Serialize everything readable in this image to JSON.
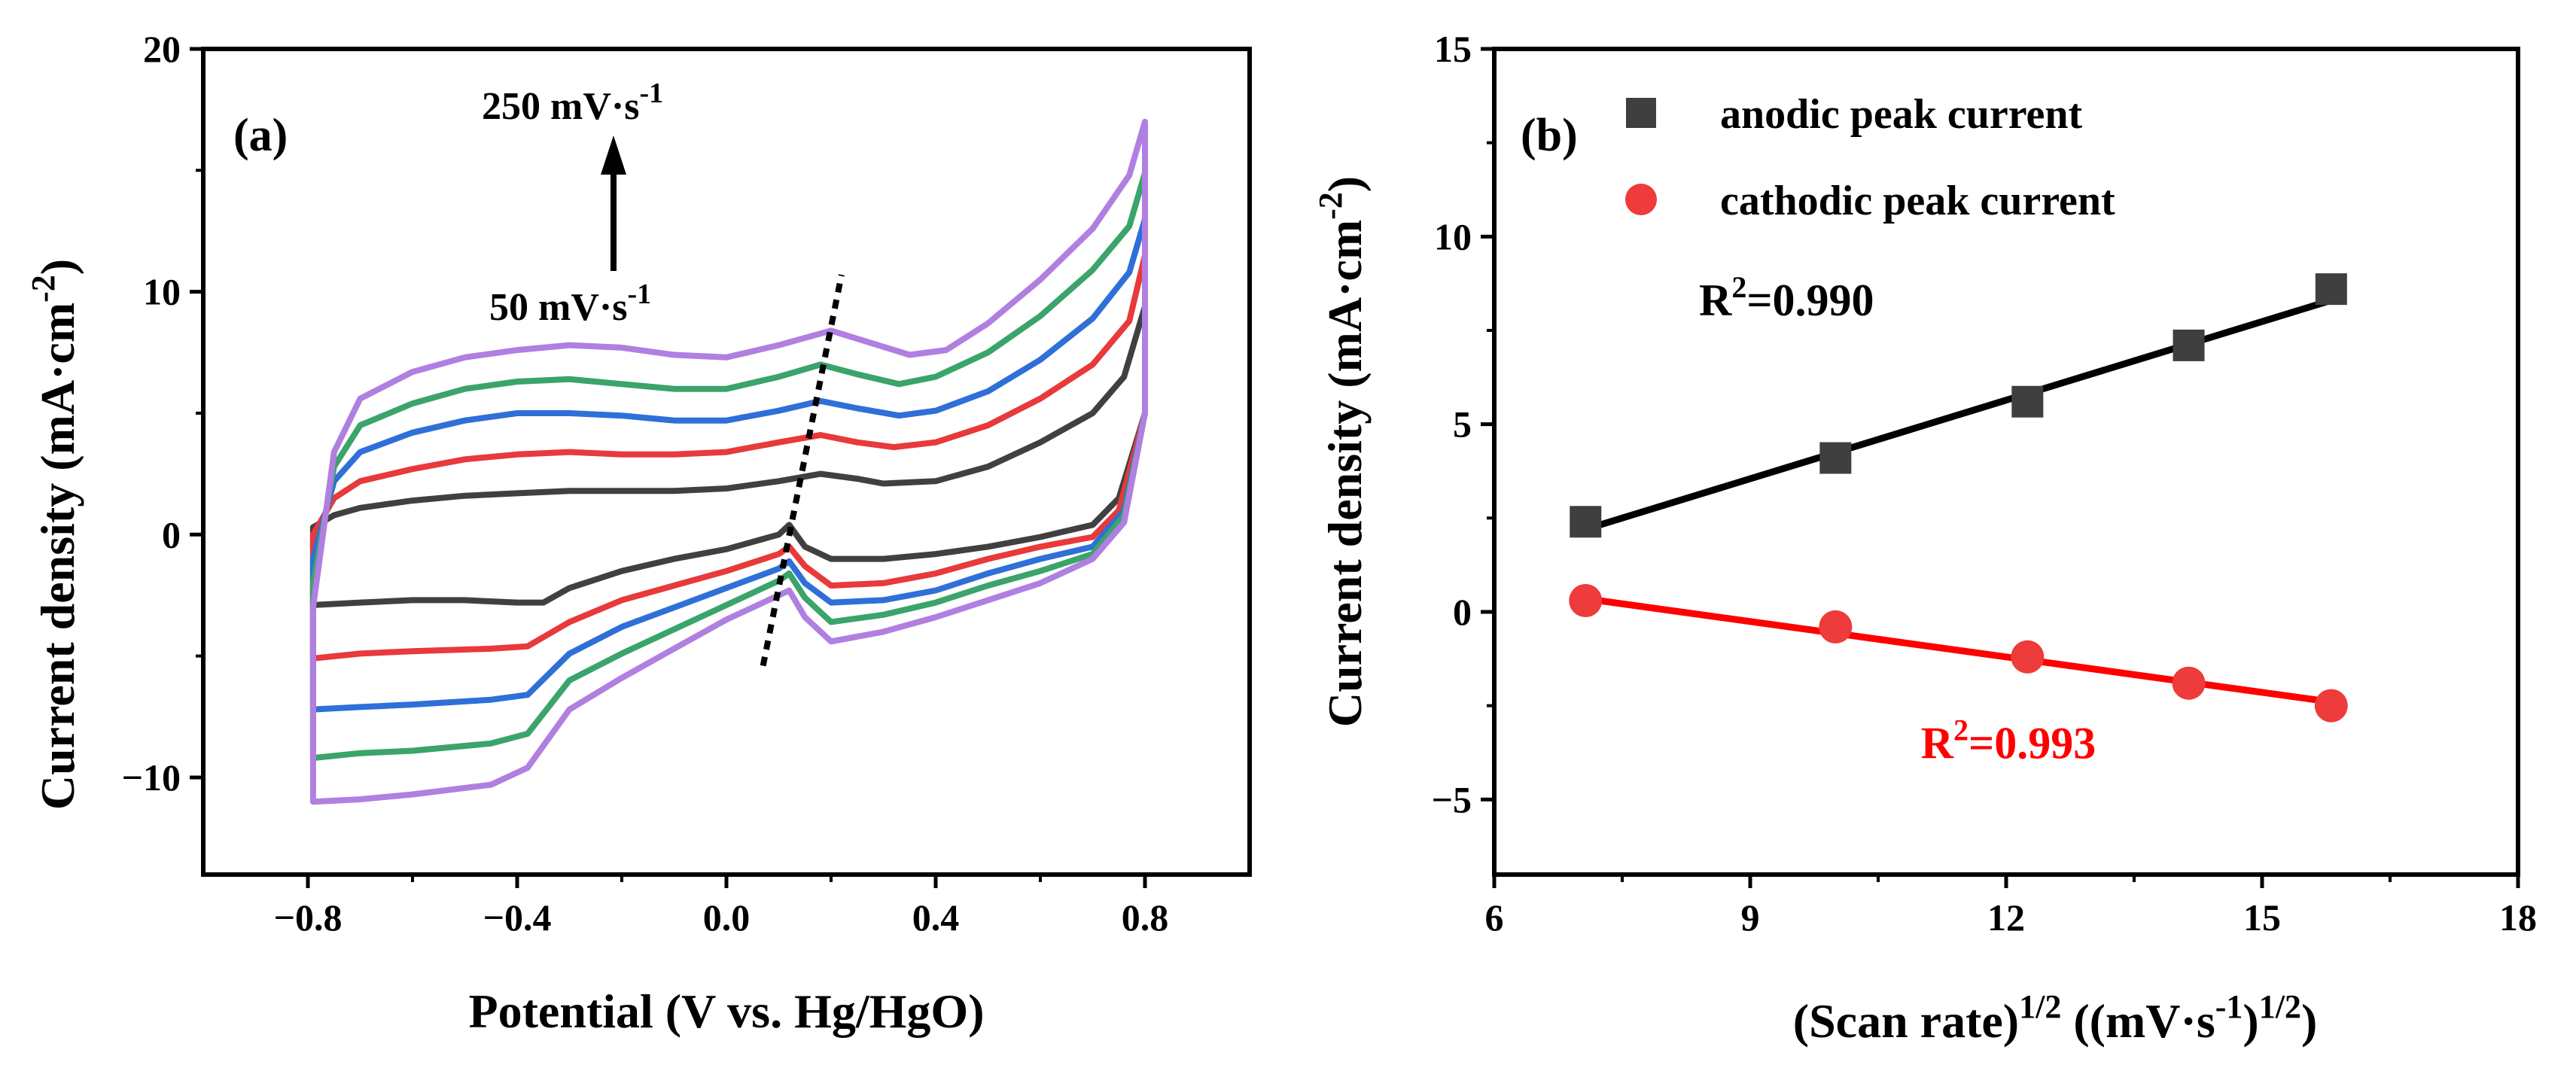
{
  "colors": {
    "black": "#404040",
    "red": "#e8393b",
    "blue": "#2f6fd8",
    "green": "#3aa46a",
    "purple": "#b07fe0",
    "anodic": "#3f3f3f",
    "cathodic": "#ee3b3b",
    "fit_black": "#000000",
    "fit_red": "#ff0000"
  },
  "chart_data": [
    {
      "type": "line",
      "panel_label": "(a)",
      "xlabel": "Potential (V vs. Hg/HgO)",
      "ylabel_main": "Current density (mA·cm",
      "ylabel_sup": "-2",
      "ylabel_tail": ")",
      "xlim": [
        -1.0,
        1.0
      ],
      "ylim": [
        -14,
        20
      ],
      "x_ticks": [
        "-0.8",
        "-0.4",
        "0.0",
        "0.4",
        "0.8"
      ],
      "x_tick_values": [
        -0.8,
        -0.4,
        0.0,
        0.4,
        0.8
      ],
      "y_ticks": [
        "-10",
        "0",
        "10",
        "20"
      ],
      "y_tick_values": [
        -10,
        0,
        10,
        20
      ],
      "annotations": {
        "top_main": "250 mV·s",
        "top_sup": "-1",
        "bottom_main": "50 mV·s",
        "bottom_sup": "-1"
      },
      "series": [
        {
          "color_key": "black",
          "upper": [
            [
              -0.79,
              0.3
            ],
            [
              -0.75,
              0.8
            ],
            [
              -0.7,
              1.1
            ],
            [
              -0.6,
              1.4
            ],
            [
              -0.5,
              1.6
            ],
            [
              -0.4,
              1.7
            ],
            [
              -0.3,
              1.8
            ],
            [
              -0.2,
              1.8
            ],
            [
              -0.1,
              1.8
            ],
            [
              0.0,
              1.9
            ],
            [
              0.1,
              2.2
            ],
            [
              0.18,
              2.5
            ],
            [
              0.25,
              2.3
            ],
            [
              0.3,
              2.1
            ],
            [
              0.4,
              2.2
            ],
            [
              0.5,
              2.8
            ],
            [
              0.6,
              3.8
            ],
            [
              0.7,
              5.0
            ],
            [
              0.76,
              6.5
            ],
            [
              0.8,
              9.4
            ]
          ],
          "lower": [
            [
              0.8,
              5.0
            ],
            [
              0.75,
              1.5
            ],
            [
              0.7,
              0.4
            ],
            [
              0.6,
              -0.1
            ],
            [
              0.5,
              -0.5
            ],
            [
              0.4,
              -0.8
            ],
            [
              0.3,
              -1.0
            ],
            [
              0.2,
              -1.0
            ],
            [
              0.15,
              -0.5
            ],
            [
              0.12,
              0.4
            ],
            [
              0.1,
              0.0
            ],
            [
              0.0,
              -0.6
            ],
            [
              -0.1,
              -1.0
            ],
            [
              -0.2,
              -1.5
            ],
            [
              -0.3,
              -2.2
            ],
            [
              -0.35,
              -2.8
            ],
            [
              -0.4,
              -2.8
            ],
            [
              -0.5,
              -2.7
            ],
            [
              -0.6,
              -2.7
            ],
            [
              -0.7,
              -2.8
            ],
            [
              -0.79,
              -2.9
            ]
          ]
        },
        {
          "color_key": "red",
          "upper": [
            [
              -0.79,
              0.0
            ],
            [
              -0.75,
              1.5
            ],
            [
              -0.7,
              2.2
            ],
            [
              -0.6,
              2.7
            ],
            [
              -0.5,
              3.1
            ],
            [
              -0.4,
              3.3
            ],
            [
              -0.3,
              3.4
            ],
            [
              -0.2,
              3.3
            ],
            [
              -0.1,
              3.3
            ],
            [
              0.0,
              3.4
            ],
            [
              0.1,
              3.8
            ],
            [
              0.18,
              4.1
            ],
            [
              0.25,
              3.8
            ],
            [
              0.32,
              3.6
            ],
            [
              0.4,
              3.8
            ],
            [
              0.5,
              4.5
            ],
            [
              0.6,
              5.6
            ],
            [
              0.7,
              7.0
            ],
            [
              0.77,
              8.8
            ],
            [
              0.8,
              11.5
            ]
          ],
          "lower": [
            [
              0.8,
              5.0
            ],
            [
              0.75,
              1.0
            ],
            [
              0.7,
              -0.1
            ],
            [
              0.6,
              -0.5
            ],
            [
              0.5,
              -1.0
            ],
            [
              0.4,
              -1.6
            ],
            [
              0.3,
              -2.0
            ],
            [
              0.2,
              -2.1
            ],
            [
              0.15,
              -1.3
            ],
            [
              0.12,
              -0.5
            ],
            [
              0.1,
              -0.8
            ],
            [
              0.0,
              -1.5
            ],
            [
              -0.1,
              -2.1
            ],
            [
              -0.2,
              -2.7
            ],
            [
              -0.3,
              -3.6
            ],
            [
              -0.38,
              -4.6
            ],
            [
              -0.45,
              -4.7
            ],
            [
              -0.6,
              -4.8
            ],
            [
              -0.7,
              -4.9
            ],
            [
              -0.79,
              -5.1
            ]
          ]
        },
        {
          "color_key": "blue",
          "upper": [
            [
              -0.79,
              -1.0
            ],
            [
              -0.75,
              2.2
            ],
            [
              -0.7,
              3.4
            ],
            [
              -0.6,
              4.2
            ],
            [
              -0.5,
              4.7
            ],
            [
              -0.4,
              5.0
            ],
            [
              -0.3,
              5.0
            ],
            [
              -0.2,
              4.9
            ],
            [
              -0.1,
              4.7
            ],
            [
              0.0,
              4.7
            ],
            [
              0.1,
              5.1
            ],
            [
              0.18,
              5.5
            ],
            [
              0.25,
              5.2
            ],
            [
              0.33,
              4.9
            ],
            [
              0.4,
              5.1
            ],
            [
              0.5,
              5.9
            ],
            [
              0.6,
              7.2
            ],
            [
              0.7,
              8.9
            ],
            [
              0.77,
              10.8
            ],
            [
              0.8,
              13.0
            ]
          ],
          "lower": [
            [
              0.8,
              5.0
            ],
            [
              0.76,
              1.0
            ],
            [
              0.7,
              -0.5
            ],
            [
              0.6,
              -1.0
            ],
            [
              0.5,
              -1.6
            ],
            [
              0.4,
              -2.3
            ],
            [
              0.3,
              -2.7
            ],
            [
              0.2,
              -2.8
            ],
            [
              0.15,
              -2.0
            ],
            [
              0.12,
              -1.1
            ],
            [
              0.1,
              -1.4
            ],
            [
              0.0,
              -2.2
            ],
            [
              -0.1,
              -3.0
            ],
            [
              -0.2,
              -3.8
            ],
            [
              -0.3,
              -4.9
            ],
            [
              -0.38,
              -6.6
            ],
            [
              -0.45,
              -6.8
            ],
            [
              -0.6,
              -7.0
            ],
            [
              -0.7,
              -7.1
            ],
            [
              -0.79,
              -7.2
            ]
          ]
        },
        {
          "color_key": "green",
          "upper": [
            [
              -0.79,
              -2.0
            ],
            [
              -0.75,
              2.8
            ],
            [
              -0.7,
              4.5
            ],
            [
              -0.6,
              5.4
            ],
            [
              -0.5,
              6.0
            ],
            [
              -0.4,
              6.3
            ],
            [
              -0.3,
              6.4
            ],
            [
              -0.2,
              6.2
            ],
            [
              -0.1,
              6.0
            ],
            [
              0.0,
              6.0
            ],
            [
              0.1,
              6.5
            ],
            [
              0.18,
              7.0
            ],
            [
              0.25,
              6.6
            ],
            [
              0.33,
              6.2
            ],
            [
              0.4,
              6.5
            ],
            [
              0.5,
              7.5
            ],
            [
              0.6,
              9.0
            ],
            [
              0.7,
              10.9
            ],
            [
              0.77,
              12.7
            ],
            [
              0.8,
              14.9
            ]
          ],
          "lower": [
            [
              0.8,
              5.0
            ],
            [
              0.76,
              0.8
            ],
            [
              0.7,
              -0.8
            ],
            [
              0.6,
              -1.5
            ],
            [
              0.5,
              -2.1
            ],
            [
              0.4,
              -2.8
            ],
            [
              0.3,
              -3.3
            ],
            [
              0.2,
              -3.6
            ],
            [
              0.15,
              -2.6
            ],
            [
              0.12,
              -1.6
            ],
            [
              0.1,
              -1.9
            ],
            [
              0.0,
              -2.9
            ],
            [
              -0.1,
              -3.9
            ],
            [
              -0.2,
              -4.9
            ],
            [
              -0.3,
              -6.0
            ],
            [
              -0.38,
              -8.2
            ],
            [
              -0.45,
              -8.6
            ],
            [
              -0.6,
              -8.9
            ],
            [
              -0.7,
              -9.0
            ],
            [
              -0.79,
              -9.2
            ]
          ]
        },
        {
          "color_key": "purple",
          "upper": [
            [
              -0.79,
              -3.0
            ],
            [
              -0.75,
              3.4
            ],
            [
              -0.7,
              5.6
            ],
            [
              -0.6,
              6.7
            ],
            [
              -0.5,
              7.3
            ],
            [
              -0.4,
              7.6
            ],
            [
              -0.3,
              7.8
            ],
            [
              -0.2,
              7.7
            ],
            [
              -0.1,
              7.4
            ],
            [
              0.0,
              7.3
            ],
            [
              0.1,
              7.8
            ],
            [
              0.2,
              8.4
            ],
            [
              0.26,
              8.0
            ],
            [
              0.35,
              7.4
            ],
            [
              0.42,
              7.6
            ],
            [
              0.5,
              8.7
            ],
            [
              0.6,
              10.5
            ],
            [
              0.7,
              12.6
            ],
            [
              0.77,
              14.8
            ],
            [
              0.8,
              17.0
            ]
          ],
          "lower": [
            [
              0.8,
              5.0
            ],
            [
              0.76,
              0.5
            ],
            [
              0.7,
              -1.0
            ],
            [
              0.6,
              -2.0
            ],
            [
              0.5,
              -2.7
            ],
            [
              0.4,
              -3.4
            ],
            [
              0.3,
              -4.0
            ],
            [
              0.2,
              -4.4
            ],
            [
              0.15,
              -3.4
            ],
            [
              0.12,
              -2.3
            ],
            [
              0.1,
              -2.5
            ],
            [
              0.0,
              -3.5
            ],
            [
              -0.1,
              -4.7
            ],
            [
              -0.2,
              -5.9
            ],
            [
              -0.3,
              -7.2
            ],
            [
              -0.38,
              -9.6
            ],
            [
              -0.45,
              -10.3
            ],
            [
              -0.6,
              -10.7
            ],
            [
              -0.7,
              -10.9
            ],
            [
              -0.79,
              -11.0
            ]
          ]
        }
      ],
      "trend_line": [
        [
          0.07,
          -5.4
        ],
        [
          0.22,
          10.7
        ]
      ]
    },
    {
      "type": "scatter",
      "panel_label": "(b)",
      "xlabel_main": "(Scan rate)",
      "xlabel_sup1": "1/2",
      "xlabel_mid": " ((mV·s",
      "xlabel_sup2": "-1",
      "xlabel_tail": ")",
      "xlabel_sup3": "1/2",
      "xlabel_end": ")",
      "ylabel_main": "Current density (mA·cm",
      "ylabel_sup": "-2",
      "ylabel_tail": ")",
      "xlim": [
        6,
        18
      ],
      "ylim": [
        -7,
        15
      ],
      "x_ticks": [
        "6",
        "9",
        "12",
        "15",
        "18"
      ],
      "x_tick_values": [
        6,
        9,
        12,
        15,
        18
      ],
      "y_ticks": [
        "-5",
        "0",
        "5",
        "10",
        "15"
      ],
      "y_tick_values": [
        -5,
        0,
        5,
        10,
        15
      ],
      "series": [
        {
          "name": "anodic peak current",
          "marker": "square",
          "color_key": "anodic",
          "x": [
            7.07,
            10.0,
            12.25,
            14.14,
            15.81
          ],
          "y": [
            2.4,
            4.1,
            5.6,
            7.1,
            8.6
          ]
        },
        {
          "name": "cathodic peak current",
          "marker": "circle",
          "color_key": "cathodic",
          "x": [
            7.07,
            10.0,
            12.25,
            14.14,
            15.81
          ],
          "y": [
            0.3,
            -0.4,
            -1.2,
            -1.9,
            -2.5
          ]
        }
      ],
      "fits": [
        {
          "color_key": "fit_black",
          "x": [
            7.07,
            15.81
          ],
          "y": [
            2.2,
            8.3
          ],
          "label_main": "R",
          "label_sup": "2",
          "label_tail": "=0.990",
          "label_at": [
            8.4,
            7.9
          ]
        },
        {
          "color_key": "fit_red",
          "x": [
            7.07,
            15.81
          ],
          "y": [
            0.35,
            -2.4
          ],
          "label_main": "R",
          "label_sup": "2",
          "label_tail": "=0.993",
          "label_at": [
            11.0,
            -3.9
          ]
        }
      ]
    }
  ]
}
